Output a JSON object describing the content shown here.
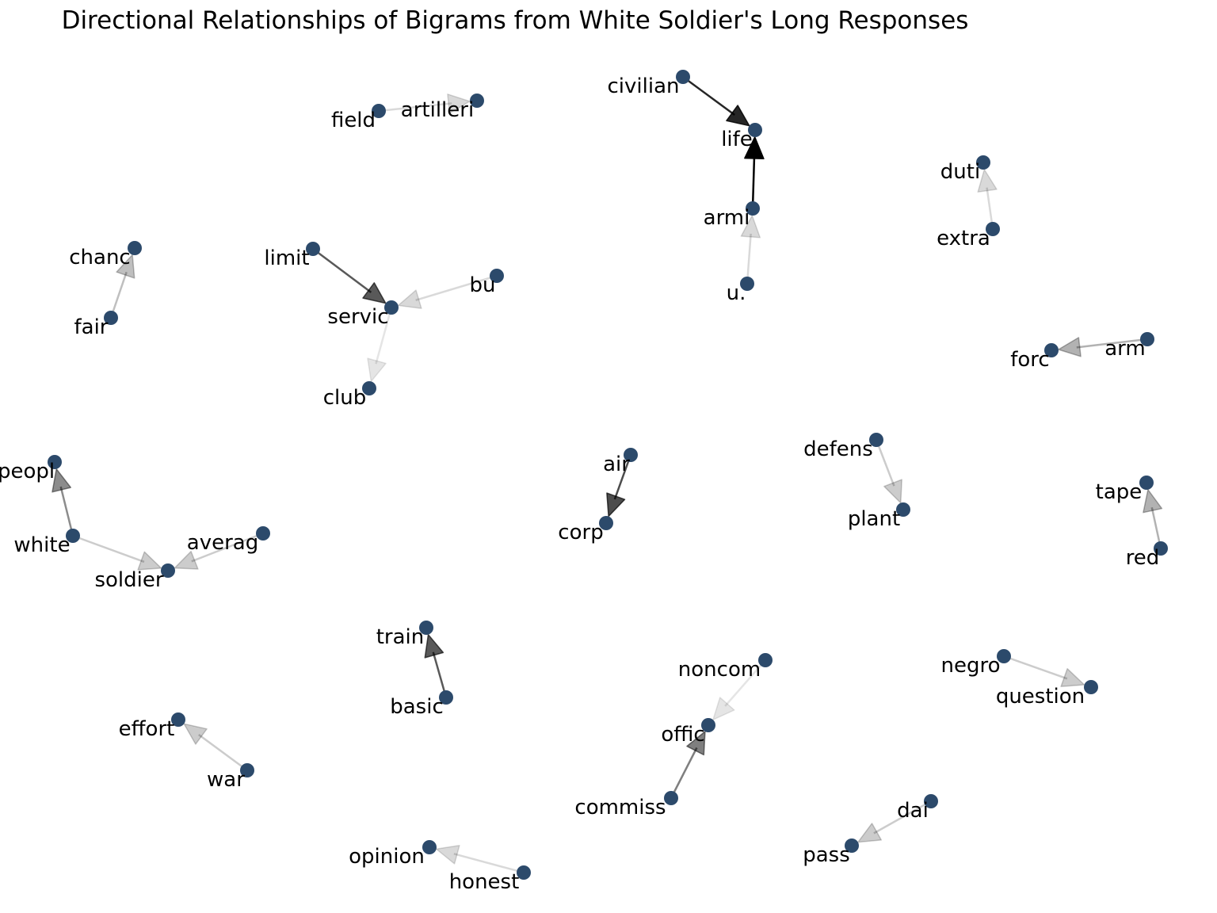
{
  "title": "Directional Relationships of Bigrams from White Soldier's Long Responses",
  "colors": {
    "node": "#2c4a6b",
    "edge": "#000000",
    "background": "#ffffff"
  },
  "nodes": [
    {
      "id": "civilian",
      "label": "civilian"
    },
    {
      "id": "life",
      "label": "life"
    },
    {
      "id": "armi",
      "label": "armi"
    },
    {
      "id": "u.",
      "label": "u."
    },
    {
      "id": "field",
      "label": "field"
    },
    {
      "id": "artilleri",
      "label": "artilleri"
    },
    {
      "id": "duti",
      "label": "duti"
    },
    {
      "id": "extra",
      "label": "extra"
    },
    {
      "id": "chanc",
      "label": "chanc"
    },
    {
      "id": "fair",
      "label": "fair"
    },
    {
      "id": "limit",
      "label": "limit"
    },
    {
      "id": "servic",
      "label": "servic"
    },
    {
      "id": "bu",
      "label": "bu"
    },
    {
      "id": "club",
      "label": "club"
    },
    {
      "id": "forc",
      "label": "forc"
    },
    {
      "id": "arm",
      "label": "arm"
    },
    {
      "id": "defens",
      "label": "defens"
    },
    {
      "id": "plant",
      "label": "plant"
    },
    {
      "id": "air",
      "label": "air"
    },
    {
      "id": "corp",
      "label": "corp"
    },
    {
      "id": "peopl",
      "label": "peopl"
    },
    {
      "id": "white",
      "label": "white"
    },
    {
      "id": "soldier",
      "label": "soldier"
    },
    {
      "id": "averag",
      "label": "averag"
    },
    {
      "id": "tape",
      "label": "tape"
    },
    {
      "id": "red",
      "label": "red"
    },
    {
      "id": "train",
      "label": "train"
    },
    {
      "id": "basic",
      "label": "basic"
    },
    {
      "id": "noncom",
      "label": "noncom"
    },
    {
      "id": "offic",
      "label": "offic"
    },
    {
      "id": "commiss",
      "label": "commiss"
    },
    {
      "id": "negro",
      "label": "negro"
    },
    {
      "id": "question",
      "label": "question"
    },
    {
      "id": "effort",
      "label": "effort"
    },
    {
      "id": "war",
      "label": "war"
    },
    {
      "id": "dai",
      "label": "dai"
    },
    {
      "id": "pass",
      "label": "pass"
    },
    {
      "id": "opinion",
      "label": "opinion"
    },
    {
      "id": "honest",
      "label": "honest"
    }
  ],
  "edges": [
    {
      "source": "civilian",
      "target": "life",
      "weight": 0.85
    },
    {
      "source": "armi",
      "target": "life",
      "weight": 1.0
    },
    {
      "source": "u.",
      "target": "armi",
      "weight": 0.15
    },
    {
      "source": "field",
      "target": "artilleri",
      "weight": 0.15
    },
    {
      "source": "extra",
      "target": "duti",
      "weight": 0.15
    },
    {
      "source": "fair",
      "target": "chanc",
      "weight": 0.25
    },
    {
      "source": "limit",
      "target": "servic",
      "weight": 0.65
    },
    {
      "source": "bu",
      "target": "servic",
      "weight": 0.15
    },
    {
      "source": "servic",
      "target": "club",
      "weight": 0.1
    },
    {
      "source": "arm",
      "target": "forc",
      "weight": 0.3
    },
    {
      "source": "defens",
      "target": "plant",
      "weight": 0.2
    },
    {
      "source": "air",
      "target": "corp",
      "weight": 0.7
    },
    {
      "source": "white",
      "target": "peopl",
      "weight": 0.45
    },
    {
      "source": "white",
      "target": "soldier",
      "weight": 0.2
    },
    {
      "source": "averag",
      "target": "soldier",
      "weight": 0.2
    },
    {
      "source": "red",
      "target": "tape",
      "weight": 0.3
    },
    {
      "source": "basic",
      "target": "train",
      "weight": 0.65
    },
    {
      "source": "noncom",
      "target": "offic",
      "weight": 0.1
    },
    {
      "source": "commiss",
      "target": "offic",
      "weight": 0.5
    },
    {
      "source": "negro",
      "target": "question",
      "weight": 0.2
    },
    {
      "source": "war",
      "target": "effort",
      "weight": 0.2
    },
    {
      "source": "dai",
      "target": "pass",
      "weight": 0.2
    },
    {
      "source": "honest",
      "target": "opinion",
      "weight": 0.15
    }
  ]
}
